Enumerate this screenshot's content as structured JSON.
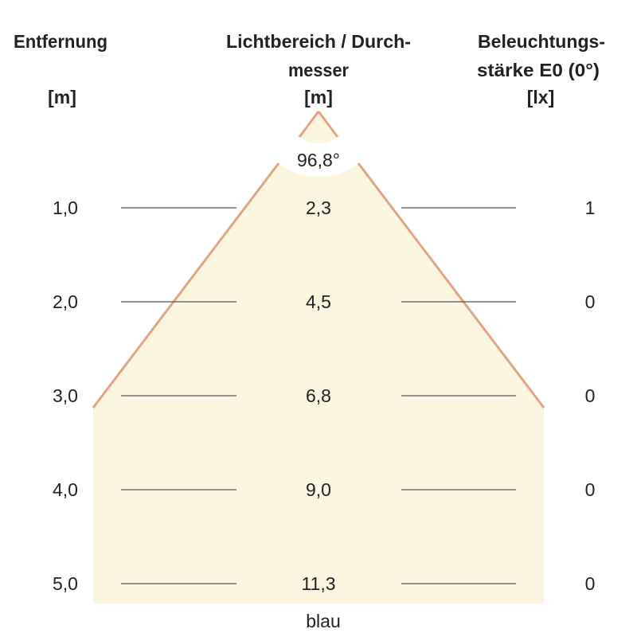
{
  "headers": {
    "distance": {
      "line1": "Entfernung",
      "unit": "[m]"
    },
    "diameter": {
      "line1": "Lichtbereich / Durch-",
      "line2": "messer",
      "unit": "[m]"
    },
    "illuminance": {
      "line1": "Beleuchtungs-",
      "line2": "stärke E0 (0°)",
      "unit": "[lx]"
    }
  },
  "beam_angle": "96,8°",
  "rows": [
    {
      "distance": "1,0",
      "diameter": "2,3",
      "illuminance": "1"
    },
    {
      "distance": "2,0",
      "diameter": "4,5",
      "illuminance": "0"
    },
    {
      "distance": "3,0",
      "diameter": "6,8",
      "illuminance": "0"
    },
    {
      "distance": "4,0",
      "diameter": "9,0",
      "illuminance": "0"
    },
    {
      "distance": "5,0",
      "diameter": "11,3",
      "illuminance": "0"
    }
  ],
  "color_label": "blau",
  "colors": {
    "beam_fill": "#fcf5e0",
    "beam_edge": "#e2a582",
    "grid_line": "#555555",
    "text": "#222222"
  }
}
